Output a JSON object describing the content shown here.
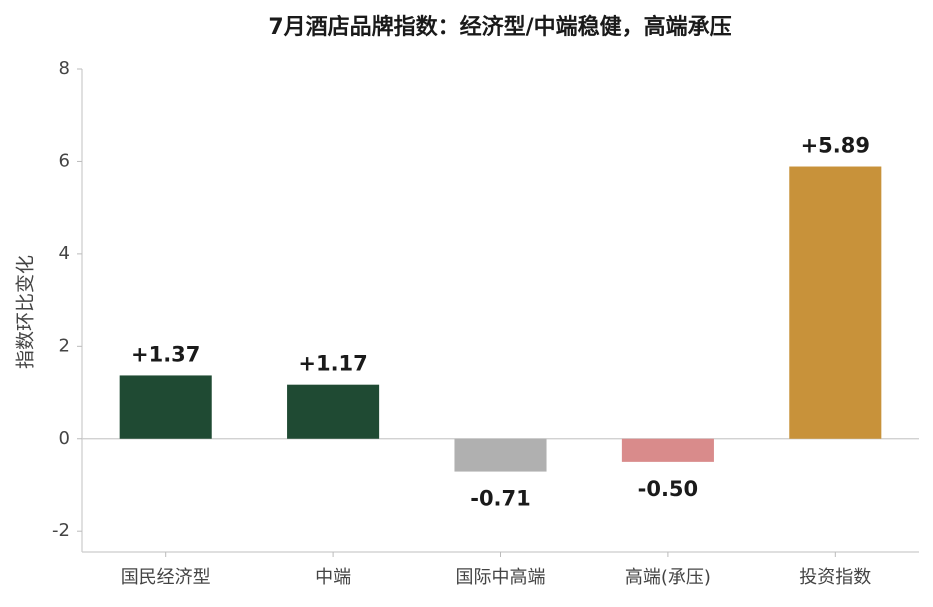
{
  "chart_data": {
    "type": "bar",
    "title": "7月酒店品牌指数：经济型/中端稳健，高端承压",
    "y_label": "指数环比变化",
    "categories": [
      "国民经济型",
      "中端",
      "国际中高端",
      "高端(承压)",
      "投资指数"
    ],
    "values": [
      1.37,
      1.17,
      -0.71,
      -0.5,
      5.89
    ],
    "value_labels": [
      "+1.37",
      "+1.17",
      "-0.71",
      "-0.50",
      "+5.89"
    ],
    "colors": [
      "#1f4a33",
      "#1f4a33",
      "#b0b0b0",
      "#d98b8b",
      "#c8923a"
    ],
    "ylim": [
      -2.45,
      8
    ],
    "yticks": [
      -2,
      0,
      2,
      4,
      6,
      8
    ],
    "grid": false
  }
}
